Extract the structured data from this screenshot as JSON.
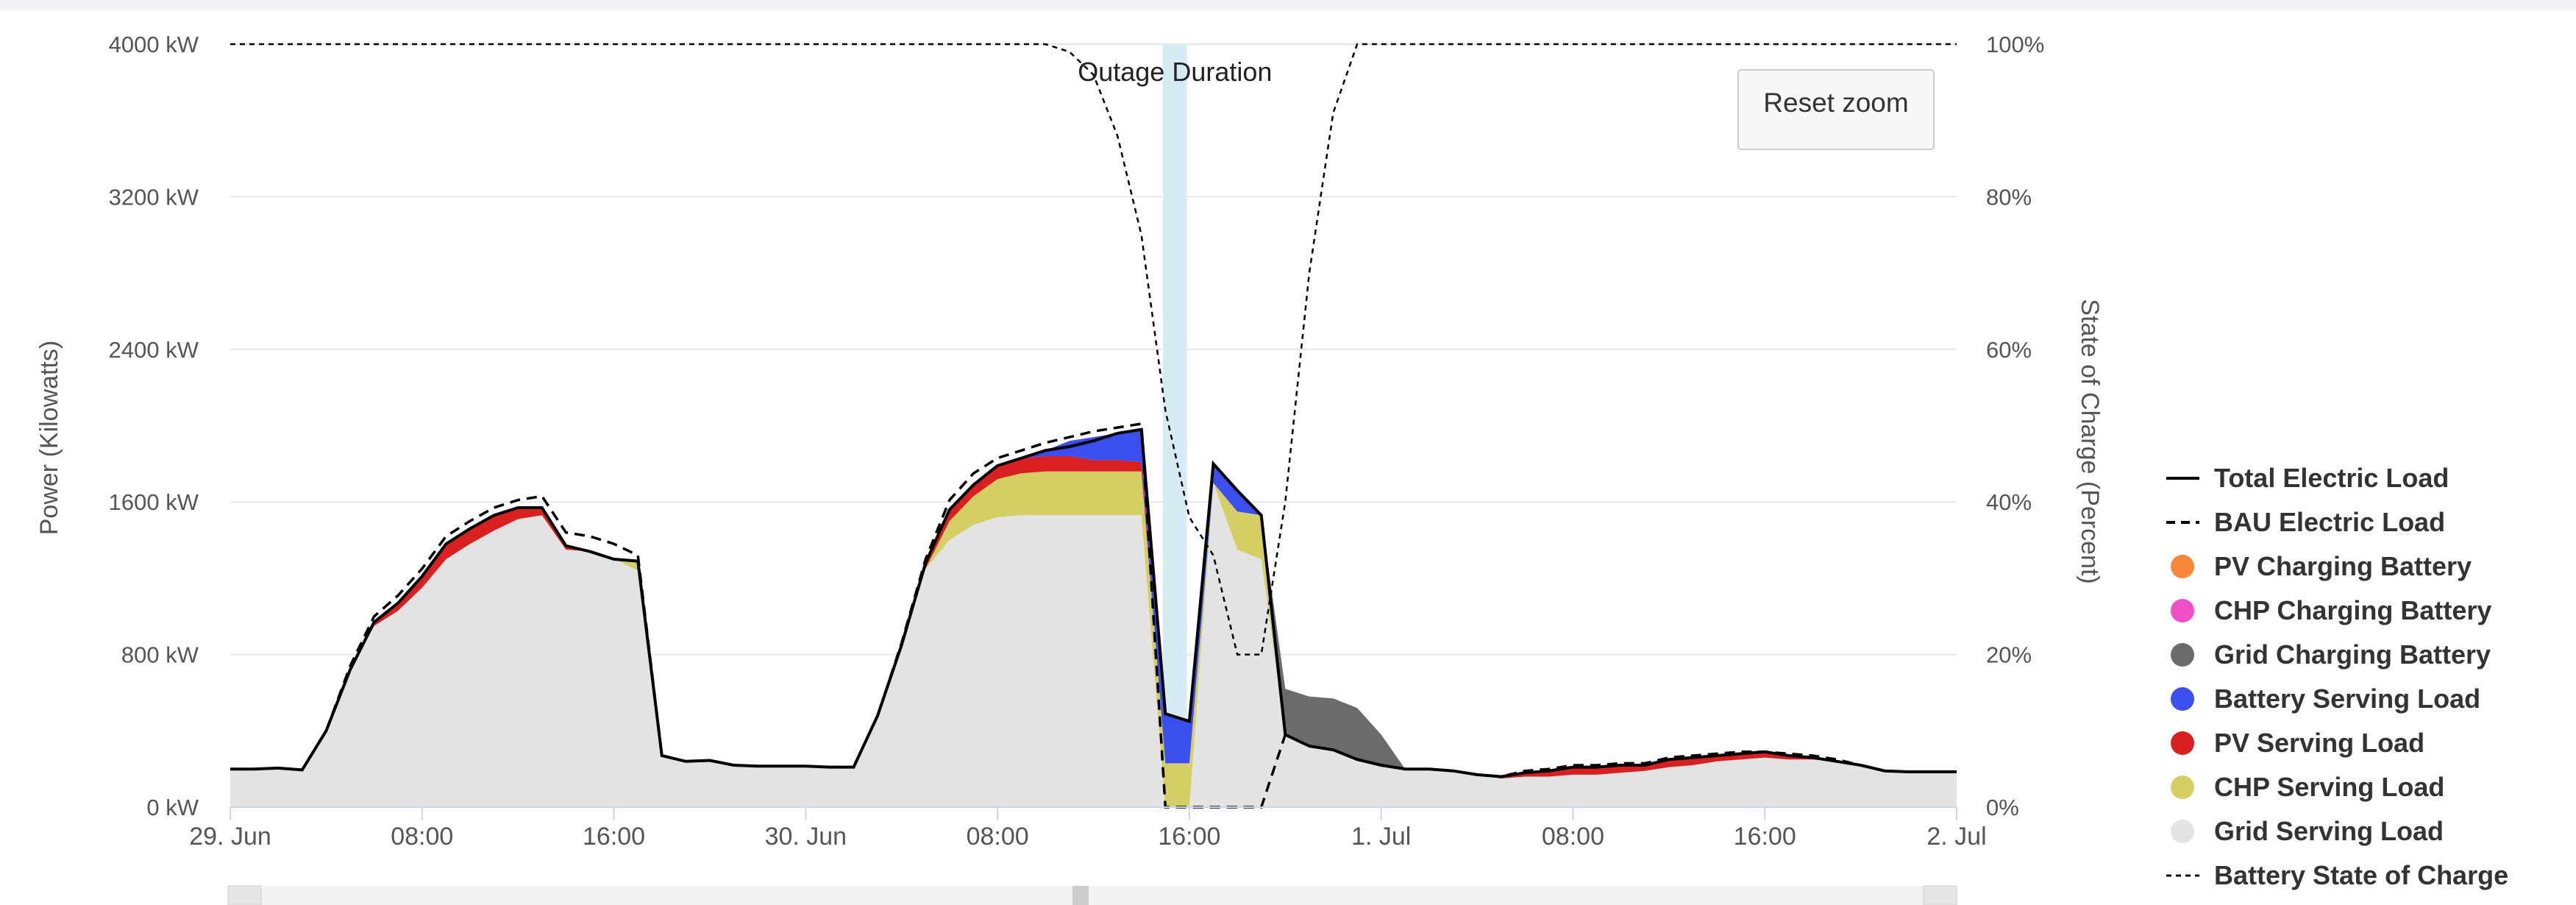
{
  "reset_zoom_label": "Reset zoom",
  "colors": {
    "total": "#000000",
    "bau": "#000000",
    "pv_charging": "#f7883b",
    "chp_charging": "#f04fc7",
    "grid_charging": "#6b6b6b",
    "battery_serving": "#3b4fef",
    "pv_serving": "#d82020",
    "chp_serving": "#d4cf64",
    "grid_serving": "#e3e3e3",
    "outage_band": "#d6ebf4",
    "gridline": "#e6e6e6"
  },
  "chart_data": {
    "type": "area",
    "title": "",
    "xlabel": "",
    "ylabel": "Power (Kilowatts)",
    "y2label": "State of Charge (Percent)",
    "x_unit": "hours since 29. Jun 00:00",
    "xlim": [
      0,
      72
    ],
    "ylim": [
      0,
      4000
    ],
    "y2lim": [
      0,
      100
    ],
    "y_ticks": [
      "0 kW",
      "800 kW",
      "1600 kW",
      "2400 kW",
      "3200 kW",
      "4000 kW"
    ],
    "y2_ticks": [
      "0%",
      "20%",
      "40%",
      "60%",
      "80%",
      "100%"
    ],
    "x_ticks": [
      {
        "x": 0,
        "label": "29. Jun"
      },
      {
        "x": 8,
        "label": "08:00"
      },
      {
        "x": 16,
        "label": "16:00"
      },
      {
        "x": 24,
        "label": "30. Jun"
      },
      {
        "x": 32,
        "label": "08:00"
      },
      {
        "x": 40,
        "label": "16:00"
      },
      {
        "x": 48,
        "label": "1. Jul"
      },
      {
        "x": 56,
        "label": "08:00"
      },
      {
        "x": 64,
        "label": "16:00"
      },
      {
        "x": 72,
        "label": "2. Jul"
      }
    ],
    "grid": true,
    "legend_position": "right",
    "annotation": {
      "label": "Outage Duration",
      "x_start": 38.9,
      "x_end": 39.9
    },
    "x": [
      0,
      1,
      2,
      3,
      4,
      5,
      6,
      7,
      8,
      9,
      10,
      11,
      12,
      13,
      14,
      15,
      16,
      17,
      18,
      19,
      20,
      21,
      22,
      23,
      24,
      25,
      26,
      27,
      28,
      29,
      30,
      31,
      32,
      33,
      34,
      35,
      36,
      37,
      38,
      39,
      40,
      41,
      42,
      43,
      44,
      45,
      46,
      47,
      48,
      49,
      50,
      51,
      52,
      53,
      54,
      55,
      56,
      57,
      58,
      59,
      60,
      61,
      62,
      63,
      64,
      65,
      66,
      67,
      68,
      69,
      70,
      71,
      72
    ],
    "series": [
      {
        "name": "Grid Serving Load",
        "kind": "area",
        "color_key": "grid_serving",
        "values": [
          200,
          200,
          205,
          195,
          400,
          720,
          950,
          1030,
          1150,
          1300,
          1380,
          1450,
          1510,
          1530,
          1350,
          1340,
          1300,
          1240,
          270,
          240,
          245,
          220,
          215,
          215,
          215,
          210,
          210,
          480,
          850,
          1250,
          1400,
          1480,
          1520,
          1530,
          1530,
          1530,
          1530,
          1530,
          1530,
          0,
          0,
          1700,
          1350,
          1300,
          380,
          320,
          300,
          250,
          220,
          200,
          200,
          190,
          170,
          150,
          160,
          160,
          170,
          170,
          180,
          190,
          210,
          220,
          240,
          250,
          260,
          250,
          250,
          240,
          220,
          190,
          185,
          185,
          185
        ]
      },
      {
        "name": "CHP Serving Load",
        "kind": "area",
        "color_key": "chp_serving",
        "values": [
          0,
          0,
          0,
          0,
          0,
          0,
          0,
          0,
          0,
          0,
          0,
          0,
          0,
          0,
          0,
          0,
          0,
          50,
          0,
          0,
          0,
          0,
          0,
          0,
          0,
          0,
          0,
          0,
          0,
          0,
          100,
          150,
          200,
          220,
          230,
          230,
          230,
          230,
          230,
          230,
          230,
          0,
          200,
          230,
          0,
          0,
          0,
          0,
          0,
          0,
          0,
          0,
          0,
          0,
          0,
          0,
          0,
          0,
          0,
          0,
          0,
          0,
          0,
          0,
          0,
          0,
          0,
          0,
          0,
          0,
          0,
          0,
          0
        ]
      },
      {
        "name": "PV Serving Load",
        "kind": "area",
        "color_key": "pv_serving",
        "values": [
          0,
          0,
          0,
          0,
          0,
          0,
          20,
          40,
          60,
          80,
          80,
          80,
          60,
          40,
          20,
          0,
          0,
          0,
          0,
          0,
          0,
          0,
          0,
          0,
          0,
          0,
          0,
          0,
          0,
          30,
          60,
          60,
          70,
          80,
          80,
          80,
          60,
          60,
          50,
          0,
          0,
          0,
          0,
          0,
          0,
          0,
          0,
          0,
          0,
          0,
          0,
          0,
          0,
          10,
          20,
          30,
          40,
          40,
          40,
          30,
          40,
          40,
          30,
          30,
          30,
          20,
          10,
          0,
          0,
          0,
          0,
          0,
          0
        ]
      },
      {
        "name": "Battery Serving Load",
        "kind": "area",
        "color_key": "battery_serving",
        "values": [
          0,
          0,
          0,
          0,
          0,
          0,
          0,
          0,
          0,
          0,
          0,
          0,
          0,
          0,
          0,
          0,
          0,
          0,
          0,
          0,
          0,
          0,
          0,
          0,
          0,
          0,
          0,
          0,
          0,
          0,
          0,
          0,
          0,
          0,
          30,
          80,
          120,
          140,
          170,
          260,
          220,
          100,
          110,
          0,
          0,
          0,
          0,
          0,
          0,
          0,
          0,
          0,
          0,
          0,
          0,
          0,
          0,
          0,
          0,
          0,
          0,
          0,
          0,
          0,
          0,
          0,
          0,
          0,
          0,
          0,
          0,
          0,
          0
        ]
      },
      {
        "name": "Grid Charging Battery",
        "kind": "area",
        "color_key": "grid_charging",
        "values": [
          0,
          0,
          0,
          0,
          0,
          0,
          0,
          0,
          0,
          0,
          0,
          0,
          0,
          0,
          0,
          0,
          0,
          0,
          0,
          0,
          0,
          0,
          0,
          0,
          0,
          0,
          0,
          0,
          0,
          0,
          0,
          0,
          0,
          0,
          0,
          0,
          0,
          0,
          0,
          0,
          0,
          0,
          0,
          0,
          240,
          260,
          270,
          270,
          160,
          0,
          0,
          0,
          0,
          0,
          0,
          0,
          0,
          0,
          0,
          0,
          0,
          0,
          0,
          0,
          0,
          0,
          0,
          0,
          0,
          0,
          0,
          0,
          0
        ]
      },
      {
        "name": "CHP Charging Battery",
        "kind": "area",
        "color_key": "chp_charging",
        "values": [
          0,
          0,
          0,
          0,
          0,
          0,
          0,
          0,
          0,
          0,
          0,
          0,
          0,
          0,
          0,
          0,
          0,
          0,
          0,
          0,
          0,
          0,
          0,
          0,
          0,
          0,
          0,
          0,
          0,
          0,
          0,
          0,
          0,
          0,
          0,
          0,
          0,
          0,
          0,
          0,
          0,
          0,
          0,
          0,
          0,
          0,
          0,
          0,
          0,
          0,
          0,
          0,
          0,
          0,
          0,
          0,
          0,
          0,
          0,
          0,
          0,
          0,
          0,
          0,
          0,
          0,
          0,
          0,
          0,
          0,
          0,
          0,
          0
        ]
      },
      {
        "name": "PV Charging Battery",
        "kind": "area",
        "color_key": "pv_charging",
        "values": [
          0,
          0,
          0,
          0,
          0,
          0,
          0,
          0,
          0,
          0,
          0,
          0,
          0,
          0,
          0,
          0,
          0,
          0,
          0,
          0,
          0,
          0,
          0,
          0,
          0,
          0,
          0,
          0,
          0,
          0,
          0,
          0,
          0,
          0,
          0,
          0,
          0,
          0,
          0,
          0,
          0,
          0,
          0,
          0,
          0,
          0,
          0,
          0,
          0,
          0,
          0,
          0,
          0,
          0,
          0,
          0,
          0,
          0,
          0,
          0,
          0,
          0,
          0,
          0,
          0,
          0,
          0,
          0,
          0,
          0,
          0,
          0,
          0
        ]
      },
      {
        "name": "Total Electric Load",
        "kind": "line",
        "color_key": "total",
        "values": [
          200,
          200,
          205,
          195,
          400,
          720,
          970,
          1070,
          1210,
          1380,
          1460,
          1530,
          1570,
          1570,
          1370,
          1340,
          1300,
          1290,
          270,
          240,
          245,
          220,
          215,
          215,
          215,
          210,
          210,
          480,
          850,
          1280,
          1560,
          1690,
          1790,
          1830,
          1870,
          1890,
          1920,
          1960,
          1980,
          490,
          450,
          1800,
          1660,
          1530,
          380,
          320,
          300,
          250,
          220,
          200,
          200,
          190,
          170,
          160,
          180,
          190,
          210,
          210,
          220,
          220,
          250,
          260,
          270,
          280,
          290,
          270,
          260,
          240,
          220,
          190,
          185,
          185,
          185
        ]
      },
      {
        "name": "BAU Electric Load",
        "kind": "line",
        "dash": true,
        "color_key": "bau",
        "values": [
          200,
          200,
          205,
          195,
          400,
          740,
          1000,
          1110,
          1250,
          1420,
          1500,
          1570,
          1610,
          1630,
          1440,
          1420,
          1380,
          1320,
          270,
          240,
          245,
          220,
          215,
          215,
          215,
          210,
          210,
          480,
          860,
          1300,
          1610,
          1750,
          1830,
          1870,
          1910,
          1940,
          1970,
          1990,
          2010,
          0,
          0,
          0,
          0,
          0,
          380,
          320,
          300,
          250,
          220,
          200,
          200,
          190,
          170,
          160,
          190,
          200,
          220,
          220,
          230,
          230,
          260,
          270,
          280,
          290,
          290,
          280,
          270,
          250,
          220,
          190,
          185,
          185,
          185
        ]
      },
      {
        "name": "Battery State of Charge",
        "kind": "line",
        "dash": true,
        "axis": "right",
        "color_key": "bau",
        "values": [
          100,
          100,
          100,
          100,
          100,
          100,
          100,
          100,
          100,
          100,
          100,
          100,
          100,
          100,
          100,
          100,
          100,
          100,
          100,
          100,
          100,
          100,
          100,
          100,
          100,
          100,
          100,
          100,
          100,
          100,
          100,
          100,
          100,
          100,
          100,
          99,
          96,
          88,
          75,
          52,
          38,
          33,
          20,
          20,
          40,
          70,
          91,
          100,
          100,
          100,
          100,
          100,
          100,
          100,
          100,
          100,
          100,
          100,
          100,
          100,
          100,
          100,
          100,
          100,
          100,
          100,
          100,
          100,
          100,
          100,
          100,
          100,
          100
        ]
      }
    ],
    "legend": [
      {
        "label": "Total Electric Load",
        "symbol": "line",
        "color_key": "total"
      },
      {
        "label": "BAU Electric Load",
        "symbol": "dashed-line",
        "color_key": "bau"
      },
      {
        "label": "PV Charging Battery",
        "symbol": "dot",
        "color_key": "pv_charging"
      },
      {
        "label": "CHP Charging Battery",
        "symbol": "dot",
        "color_key": "chp_charging"
      },
      {
        "label": "Grid Charging Battery",
        "symbol": "dot",
        "color_key": "grid_charging"
      },
      {
        "label": "Battery Serving Load",
        "symbol": "dot",
        "color_key": "battery_serving"
      },
      {
        "label": "PV Serving Load",
        "symbol": "dot",
        "color_key": "pv_serving"
      },
      {
        "label": "CHP Serving Load",
        "symbol": "dot",
        "color_key": "chp_serving"
      },
      {
        "label": "Grid Serving Load",
        "symbol": "dot",
        "color_key": "grid_serving"
      },
      {
        "label": "Battery State of Charge",
        "symbol": "short-dashed-line",
        "color_key": "bau"
      }
    ]
  }
}
